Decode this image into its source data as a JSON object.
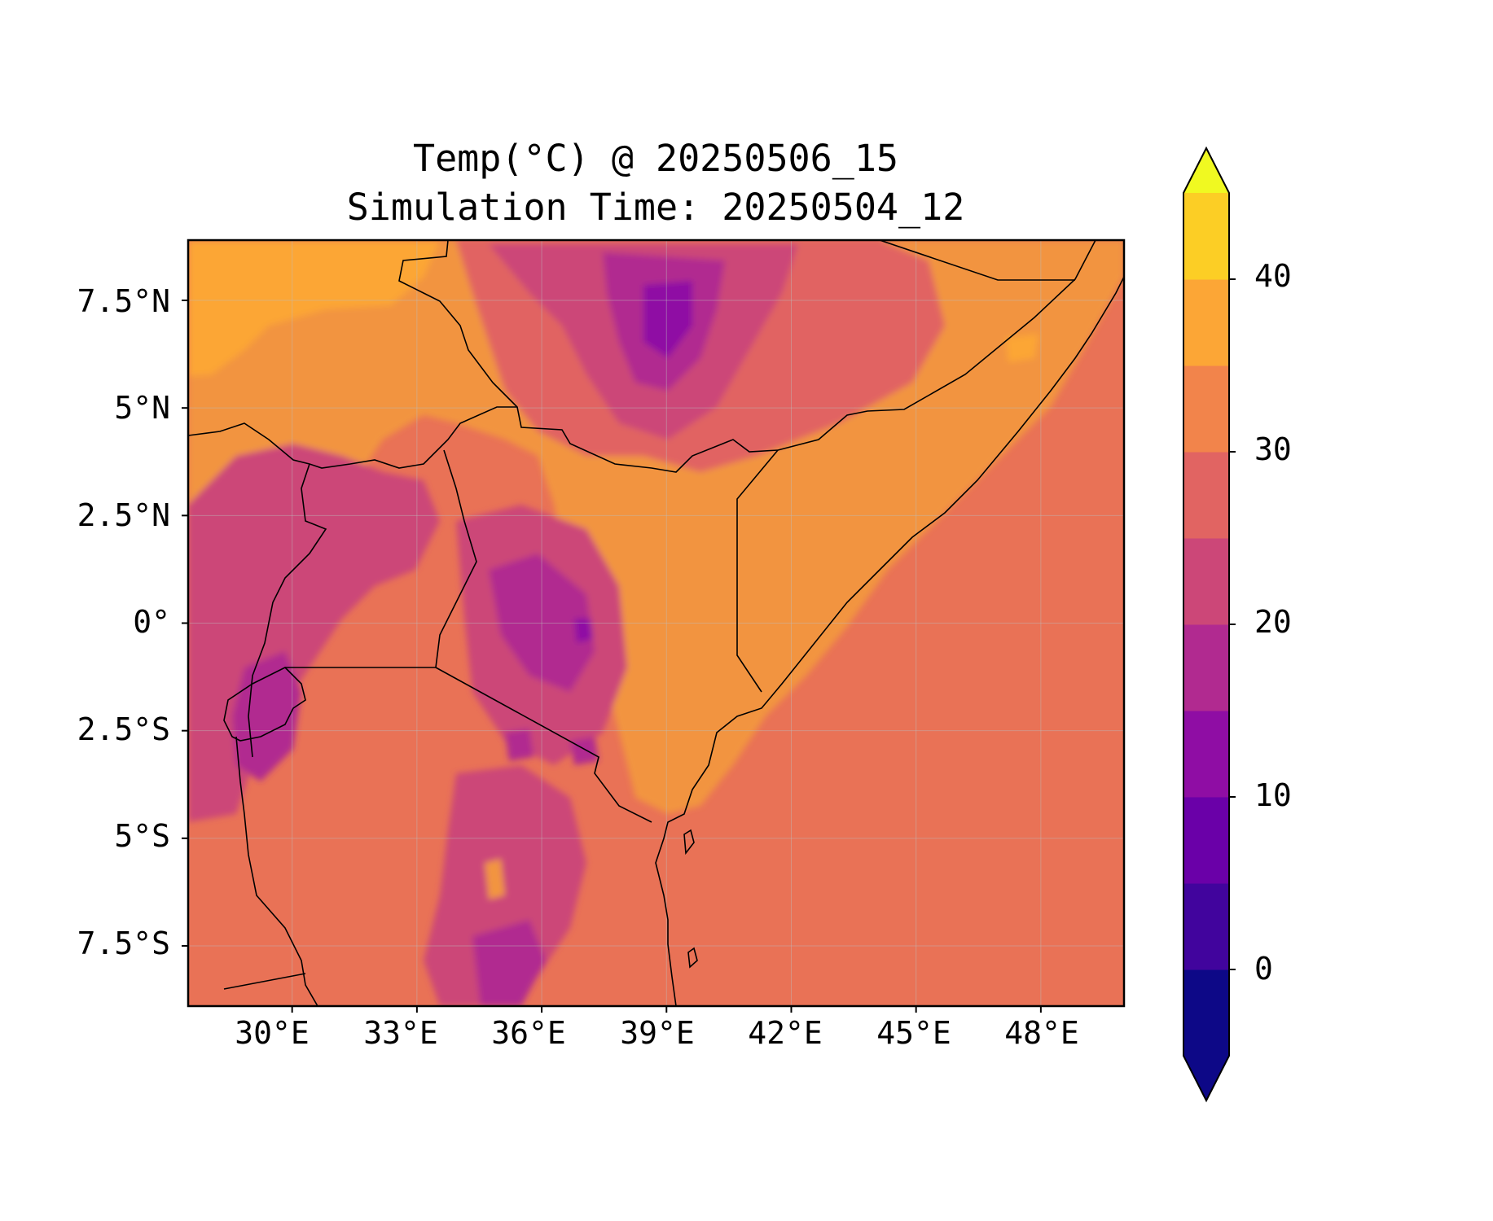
{
  "title_line1": "Temp(°C) @ 20250506_15",
  "title_line2": "Simulation Time: 20250504_12",
  "map": {
    "lon_range": [
      27.5,
      50.0
    ],
    "lat_range": [
      -8.9,
      8.9
    ],
    "gridlines": true,
    "coastline_color": "#000000",
    "land_base_color": "#f29441",
    "ocean_color": "#e97256",
    "x_ticks": [
      "30°E",
      "33°E",
      "36°E",
      "39°E",
      "42°E",
      "45°E",
      "48°E"
    ],
    "y_ticks": [
      "7.5°N",
      "5°N",
      "2.5°N",
      "0°",
      "2.5°S",
      "5°S",
      "7.5°S"
    ]
  },
  "colorbar": {
    "levels": [
      -5,
      0,
      5,
      10,
      15,
      20,
      25,
      30,
      35,
      40,
      45
    ],
    "colors": [
      "#0d0887",
      "#41049d",
      "#6a00a8",
      "#8f0da4",
      "#b12a90",
      "#cc4778",
      "#e16462",
      "#f2844b",
      "#fca636",
      "#fcce25"
    ],
    "under_color": "#0d0887",
    "over_color": "#f0f921",
    "extend": "both",
    "tick_labels": [
      "0",
      "10",
      "20",
      "30",
      "40"
    ]
  }
}
